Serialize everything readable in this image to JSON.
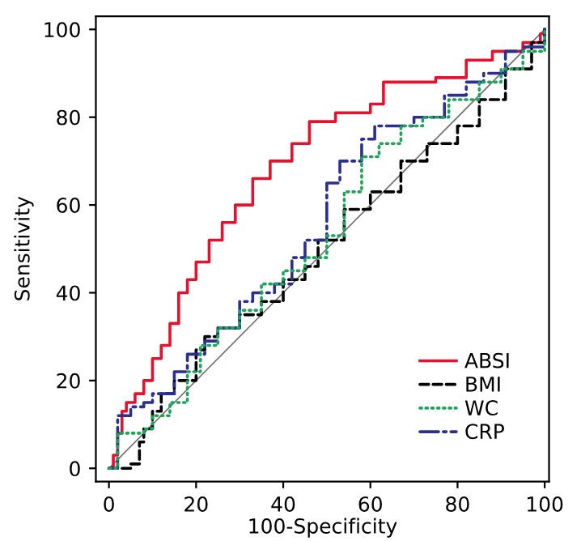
{
  "chart_data": {
    "type": "step",
    "xlabel": "100-Specificity",
    "ylabel": "Sensitivity",
    "xlim": [
      -3,
      101
    ],
    "ylim": [
      -3,
      103
    ],
    "xticks": [
      0,
      20,
      40,
      60,
      80,
      100
    ],
    "yticks": [
      0,
      20,
      40,
      60,
      80,
      100
    ],
    "grid": false,
    "legend": "bottom right",
    "series": [
      {
        "name": "ABSI",
        "color": "#e8112d",
        "line_style": "solid",
        "x": [
          0,
          1,
          2,
          3,
          4,
          6,
          8,
          10,
          12,
          14,
          16,
          18,
          20,
          23,
          26,
          29,
          33,
          37,
          42,
          46,
          52,
          60,
          63,
          75,
          82,
          88,
          95,
          99,
          100
        ],
        "values": [
          0,
          3,
          8,
          13,
          15,
          17,
          20,
          25,
          28,
          33,
          40,
          43,
          47,
          52,
          56,
          60,
          66,
          70,
          74,
          79,
          81,
          83,
          88,
          89,
          93,
          95,
          97,
          99,
          100
        ]
      },
      {
        "name": "BMI",
        "color": "#000000",
        "line_style": "dashed",
        "x": [
          0,
          5,
          7,
          8,
          10,
          12,
          15,
          20,
          22,
          25,
          30,
          35,
          40,
          45,
          48,
          54,
          60,
          67,
          73,
          80,
          85,
          91,
          97,
          100
        ],
        "values": [
          0,
          1,
          6,
          9,
          13,
          17,
          20,
          27,
          30,
          32,
          35,
          38,
          43,
          46,
          52,
          59,
          63,
          70,
          74,
          78,
          84,
          91,
          97,
          100
        ]
      },
      {
        "name": "WC",
        "color": "#1aa55a",
        "line_style": "dotted",
        "x": [
          0,
          2,
          5,
          8,
          10,
          14,
          18,
          21,
          25,
          30,
          35,
          40,
          45,
          50,
          54,
          58,
          62,
          67,
          72,
          78,
          85,
          90,
          95,
          100
        ],
        "values": [
          0,
          8,
          8,
          9,
          12,
          15,
          22,
          28,
          32,
          36,
          42,
          45,
          48,
          53,
          63,
          71,
          74,
          78,
          80,
          84,
          88,
          91,
          95,
          100
        ]
      },
      {
        "name": "CRP",
        "color": "#2b2f8f",
        "line_style": "dashdot",
        "x": [
          0,
          2,
          5,
          8,
          10,
          15,
          18,
          22,
          25,
          30,
          33,
          38,
          42,
          45,
          50,
          53,
          58,
          61,
          65,
          70,
          77,
          82,
          86,
          91,
          95,
          100
        ],
        "values": [
          0,
          12,
          14,
          15,
          17,
          22,
          26,
          29,
          32,
          38,
          40,
          42,
          48,
          52,
          65,
          70,
          75,
          78,
          78,
          80,
          85,
          88,
          90,
          95,
          96,
          100
        ]
      },
      {
        "type": "line",
        "color": "#707070",
        "line_style": "solid",
        "x": [
          0,
          100
        ],
        "values": [
          0,
          100
        ]
      }
    ]
  }
}
